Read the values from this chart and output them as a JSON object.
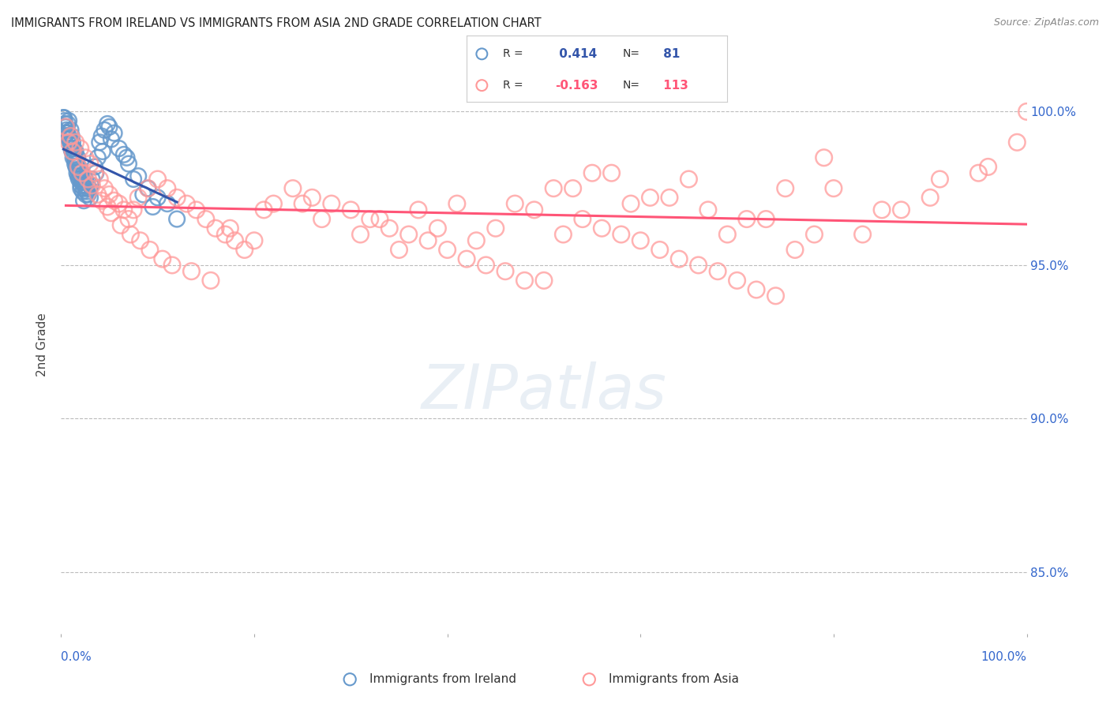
{
  "title": "IMMIGRANTS FROM IRELAND VS IMMIGRANTS FROM ASIA 2ND GRADE CORRELATION CHART",
  "source": "Source: ZipAtlas.com",
  "ylabel": "2nd Grade",
  "yticks": [
    85.0,
    90.0,
    95.0,
    100.0
  ],
  "ytick_labels": [
    "85.0%",
    "90.0%",
    "95.0%",
    "100.0%"
  ],
  "xlim": [
    0.0,
    100.0
  ],
  "ylim": [
    83.0,
    101.8
  ],
  "blue_R": 0.414,
  "blue_N": 81,
  "pink_R": -0.163,
  "pink_N": 113,
  "blue_color": "#6699CC",
  "pink_color": "#FF9999",
  "blue_line_color": "#3355AA",
  "pink_line_color": "#FF5577",
  "legend_label_blue": "Immigrants from Ireland",
  "legend_label_pink": "Immigrants from Asia",
  "tick_label_color": "#3366CC",
  "axis_label_color": "#444444",
  "background_color": "#ffffff",
  "blue_scatter_x": [
    0.3,
    0.5,
    0.7,
    0.8,
    1.0,
    1.1,
    1.2,
    1.3,
    1.4,
    1.5,
    1.6,
    1.7,
    1.8,
    1.9,
    2.0,
    2.1,
    2.2,
    2.3,
    2.4,
    2.5,
    2.6,
    2.7,
    2.8,
    2.9,
    3.0,
    3.2,
    3.5,
    3.8,
    4.0,
    4.2,
    4.5,
    4.8,
    5.0,
    5.5,
    6.0,
    6.5,
    7.0,
    8.0,
    9.0,
    10.0,
    11.0,
    0.4,
    0.6,
    0.9,
    1.05,
    1.35,
    1.55,
    1.75,
    1.95,
    2.15,
    2.35,
    2.55,
    0.35,
    0.55,
    0.75,
    0.95,
    1.15,
    1.45,
    1.65,
    1.85,
    2.05,
    2.25,
    0.25,
    0.45,
    0.65,
    0.85,
    1.05,
    1.25,
    1.55,
    1.75,
    2.05,
    2.35,
    3.1,
    3.6,
    4.3,
    5.2,
    6.8,
    7.5,
    8.5,
    9.5,
    12.0
  ],
  "blue_scatter_y": [
    99.8,
    99.5,
    99.6,
    99.7,
    99.4,
    99.2,
    99.0,
    98.8,
    98.5,
    98.7,
    98.3,
    98.5,
    98.2,
    98.0,
    98.1,
    97.9,
    97.8,
    97.7,
    97.6,
    97.8,
    97.5,
    97.4,
    97.3,
    97.5,
    97.2,
    97.8,
    98.2,
    98.5,
    99.0,
    99.2,
    99.4,
    99.6,
    99.5,
    99.3,
    98.8,
    98.6,
    98.3,
    97.9,
    97.5,
    97.2,
    97.0,
    99.6,
    99.3,
    99.1,
    98.9,
    98.6,
    98.4,
    98.1,
    97.9,
    97.7,
    97.5,
    97.3,
    99.7,
    99.4,
    99.2,
    99.0,
    98.7,
    98.3,
    98.0,
    97.8,
    97.6,
    97.4,
    99.8,
    99.5,
    99.3,
    99.1,
    98.8,
    98.5,
    98.2,
    97.9,
    97.5,
    97.1,
    97.6,
    98.0,
    98.7,
    99.1,
    98.5,
    97.8,
    97.3,
    96.9,
    96.5
  ],
  "pink_scatter_x": [
    0.5,
    1.0,
    1.5,
    2.0,
    2.5,
    3.0,
    3.5,
    4.0,
    4.5,
    5.0,
    5.5,
    6.0,
    6.5,
    7.0,
    7.5,
    8.0,
    9.0,
    10.0,
    11.0,
    12.0,
    13.0,
    14.0,
    15.0,
    16.0,
    17.0,
    18.0,
    19.0,
    20.0,
    22.0,
    24.0,
    26.0,
    28.0,
    30.0,
    32.0,
    34.0,
    36.0,
    38.0,
    40.0,
    42.0,
    44.0,
    46.0,
    48.0,
    50.0,
    52.0,
    54.0,
    56.0,
    58.0,
    60.0,
    62.0,
    64.0,
    66.0,
    68.0,
    70.0,
    72.0,
    74.0,
    76.0,
    78.0,
    80.0,
    85.0,
    90.0,
    95.0,
    100.0,
    0.8,
    1.2,
    1.8,
    2.2,
    2.8,
    3.2,
    3.8,
    4.2,
    4.8,
    5.2,
    6.2,
    7.2,
    8.2,
    9.2,
    10.5,
    11.5,
    13.5,
    15.5,
    17.5,
    21.0,
    25.0,
    27.0,
    31.0,
    35.0,
    39.0,
    43.0,
    47.0,
    51.0,
    55.0,
    59.0,
    63.0,
    67.0,
    71.0,
    75.0,
    79.0,
    83.0,
    87.0,
    91.0,
    96.0,
    99.0,
    33.0,
    37.0,
    41.0,
    45.0,
    49.0,
    53.0,
    57.0,
    61.0,
    65.0,
    69.0,
    73.0
  ],
  "pink_scatter_y": [
    99.5,
    99.2,
    99.0,
    98.8,
    98.5,
    98.3,
    98.0,
    97.8,
    97.5,
    97.3,
    97.1,
    97.0,
    96.8,
    96.5,
    96.8,
    97.2,
    97.5,
    97.8,
    97.5,
    97.2,
    97.0,
    96.8,
    96.5,
    96.2,
    96.0,
    95.8,
    95.5,
    95.8,
    97.0,
    97.5,
    97.2,
    97.0,
    96.8,
    96.5,
    96.2,
    96.0,
    95.8,
    95.5,
    95.2,
    95.0,
    94.8,
    94.5,
    94.5,
    96.0,
    96.5,
    96.2,
    96.0,
    95.8,
    95.5,
    95.2,
    95.0,
    94.8,
    94.5,
    94.2,
    94.0,
    95.5,
    96.0,
    97.5,
    96.8,
    97.2,
    98.0,
    100.0,
    99.0,
    98.7,
    98.2,
    98.0,
    97.8,
    97.6,
    97.3,
    97.1,
    96.9,
    96.7,
    96.3,
    96.0,
    95.8,
    95.5,
    95.2,
    95.0,
    94.8,
    94.5,
    96.2,
    96.8,
    97.0,
    96.5,
    96.0,
    95.5,
    96.2,
    95.8,
    97.0,
    97.5,
    98.0,
    97.0,
    97.2,
    96.8,
    96.5,
    97.5,
    98.5,
    96.0,
    96.8,
    97.8,
    98.2,
    99.0,
    96.5,
    96.8,
    97.0,
    96.2,
    96.8,
    97.5,
    98.0,
    97.2,
    97.8,
    96.0,
    96.5
  ]
}
